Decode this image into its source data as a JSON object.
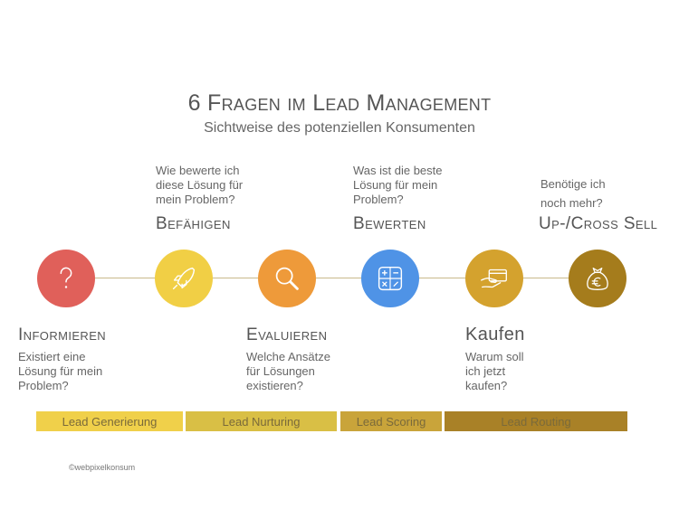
{
  "title": "6 Fragen im Lead Management",
  "subtitle": "Sichtweise des potenziellen Konsumenten",
  "steps": [
    {
      "stage": "Informieren",
      "question": "Existiert eine\nLösung für mein\nProblem?",
      "color": "#e0605a",
      "icon": "question-mark-icon"
    },
    {
      "stage": "Befähigen",
      "question": "Wie bewerte ich\ndiese Lösung für\nmein Problem?",
      "color": "#f1cf45",
      "icon": "rocket-icon"
    },
    {
      "stage": "Evaluieren",
      "question": "Welche Ansätze\nfür Lösungen\nexistieren?",
      "color": "#ee9a3a",
      "icon": "magnifier-icon"
    },
    {
      "stage": "Bewerten",
      "question": "Was ist die beste\nLösung für mein\nProblem?",
      "color": "#4f93e6",
      "icon": "calculator-icon"
    },
    {
      "stage": "Kaufen",
      "question": "Warum soll\nich jetzt\nkaufen?",
      "color": "#d4a22e",
      "icon": "card-payment-icon"
    },
    {
      "stage": "Up-/Cross Sell",
      "question": "Benötige ich\nnoch mehr?",
      "color": "#a57c1c",
      "icon": "money-bag-icon"
    }
  ],
  "bands": [
    {
      "label": "Lead Generierung",
      "color": "#f0d04a"
    },
    {
      "label": "Lead Nurturing",
      "color": "#d9bf45"
    },
    {
      "label": "Lead Scoring",
      "color": "#c9a43a"
    },
    {
      "label": "Lead Routing",
      "color": "#a98127"
    }
  ],
  "copyright": "©webpixelkonsum"
}
